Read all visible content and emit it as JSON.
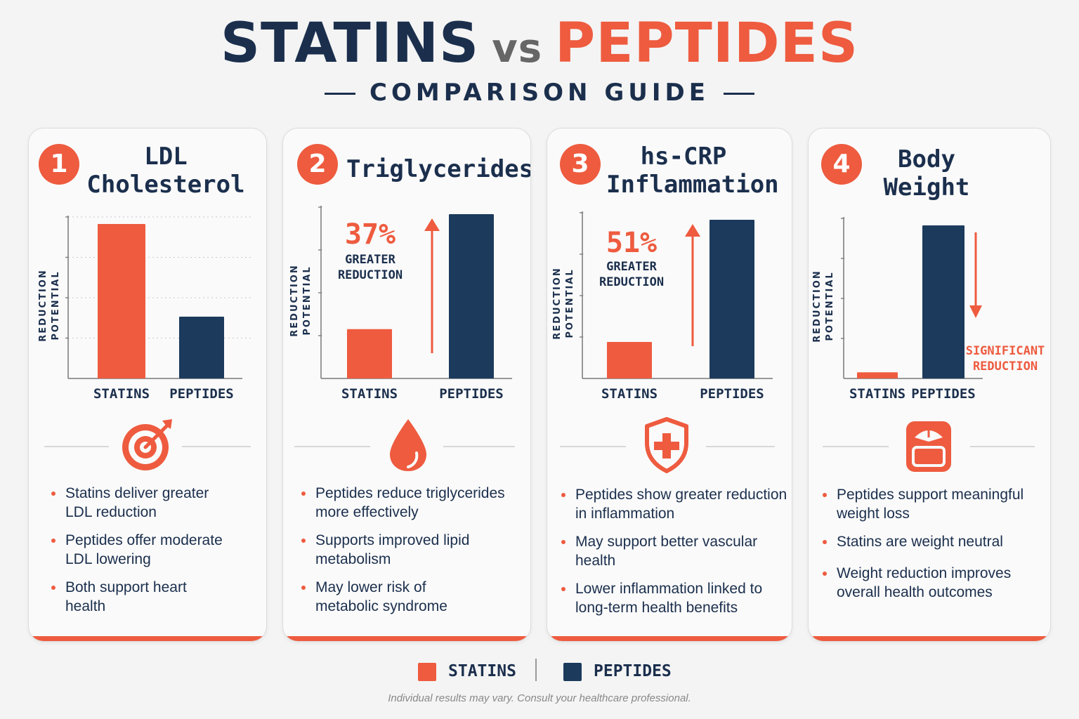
{
  "title": {
    "left": "STATINS",
    "vs": "vs",
    "right": "PEPTIDES"
  },
  "subtitle": "COMPARISON GUIDE",
  "colors": {
    "statins": "#ee5b3f",
    "peptides": "#1b3a5c",
    "background": "#f4f4f4",
    "text": "#1b2f4d"
  },
  "cards": [
    {
      "number": "1",
      "title": "LDL\nCholesterol",
      "icon": "target-icon",
      "bullets": [
        "Statins deliver greater\nLDL reduction",
        "Peptides offer moderate\nLDL lowering",
        "Both support heart\nhealth"
      ]
    },
    {
      "number": "2",
      "title": "Triglycerides",
      "icon": "blood-drop-icon",
      "callout": {
        "value": "37%",
        "text": "GREATER\nREDUCTION"
      },
      "bullets": [
        "Peptides reduce triglycerides\nmore effectively",
        "Supports improved lipid\nmetabolism",
        "May lower risk of\nmetabolic syndrome"
      ]
    },
    {
      "number": "3",
      "title": "hs-CRP\nInflammation",
      "icon": "shield-cross-icon",
      "callout": {
        "value": "51%",
        "text": "GREATER\nREDUCTION"
      },
      "bullets": [
        "Peptides show greater reduction\nin inflammation",
        "May support better vascular\nhealth",
        "Lower inflammation linked to\nlong-term health benefits"
      ]
    },
    {
      "number": "4",
      "title": "Body\nWeight",
      "icon": "scale-icon",
      "callout": {
        "value": "",
        "text": "SIGNIFICANT\nREDUCTION"
      },
      "bullets": [
        "Peptides support meaningful\nweight loss",
        "Statins are weight neutral",
        "Weight reduction improves\noverall health outcomes"
      ]
    }
  ],
  "chart_data": [
    {
      "type": "bar",
      "title": "LDL Cholesterol",
      "ylabel": "REDUCTION POTENTIAL",
      "categories": [
        "STATINS",
        "PEPTIDES"
      ],
      "values": [
        100,
        40
      ],
      "ylim": [
        0,
        100
      ],
      "grid": true
    },
    {
      "type": "bar",
      "title": "Triglycerides",
      "ylabel": "REDUCTION POTENTIAL",
      "categories": [
        "STATINS",
        "PEPTIDES"
      ],
      "values": [
        30,
        100
      ],
      "ylim": [
        0,
        100
      ],
      "grid": true
    },
    {
      "type": "bar",
      "title": "hs-CRP Inflammation",
      "ylabel": "REDUCTION POTENTIAL",
      "categories": [
        "STATINS",
        "PEPTIDES"
      ],
      "values": [
        23,
        100
      ],
      "ylim": [
        0,
        100
      ],
      "grid": true
    },
    {
      "type": "bar",
      "title": "Body Weight",
      "ylabel": "REDUCTION POTENTIAL",
      "categories": [
        "STATINS",
        "PEPTIDES"
      ],
      "values": [
        4,
        100
      ],
      "ylim": [
        0,
        100
      ],
      "grid": true
    }
  ],
  "legend": [
    "STATINS",
    "PEPTIDES"
  ],
  "footnote": "Individual results may vary. Consult your healthcare professional."
}
